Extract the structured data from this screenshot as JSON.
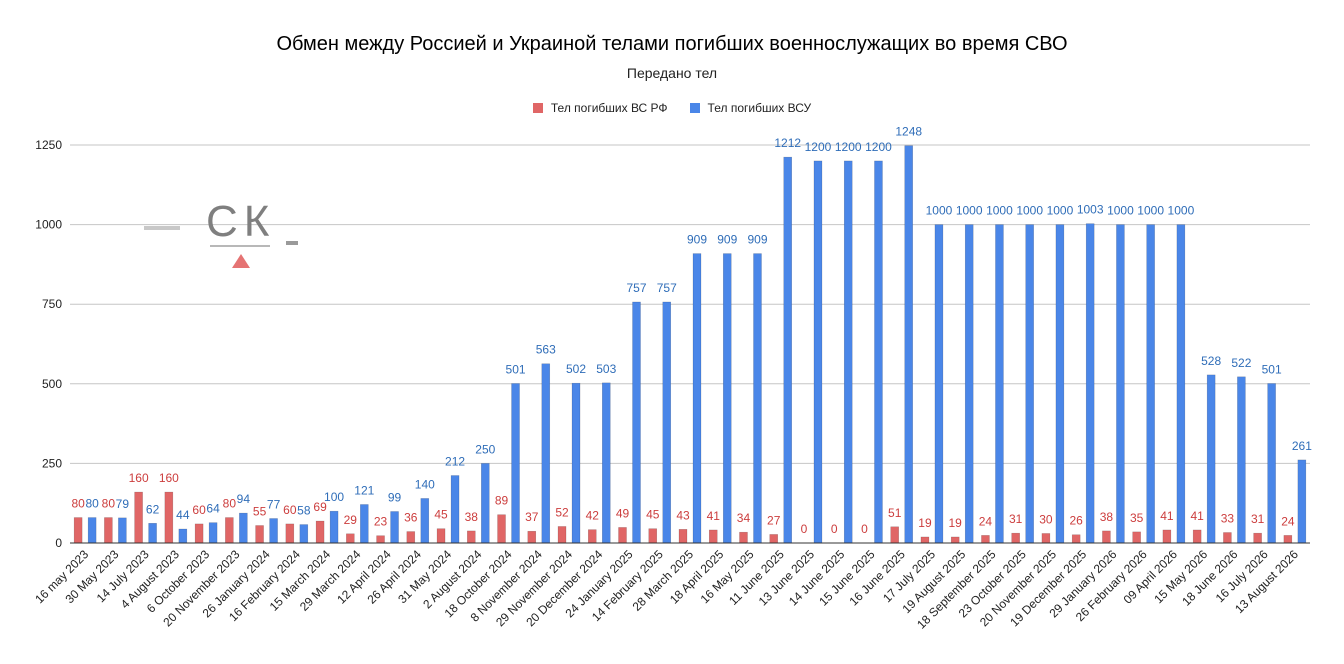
{
  "chart_data": {
    "type": "bar",
    "title": "Обмен между Россией и Украиной телами погибших военнослужащих во время СВО",
    "subtitle": "Передано тел",
    "xlabel": "",
    "ylabel": "",
    "ylim": [
      0,
      1250
    ],
    "yticks": [
      0,
      250,
      500,
      750,
      1000,
      1250
    ],
    "grid": true,
    "legend_position": "top",
    "categories": [
      "16 may 2023",
      "30 May 2023",
      "14 July 2023",
      "4 August 2023",
      "6 October 2023",
      "20 November 2023",
      "26 January 2024",
      "16 February 2024",
      "15 March 2024",
      "29 March 2024",
      "12 April 2024",
      "26 April 2024",
      "31 May 2024",
      "2 August 2024",
      "18 October 2024",
      "8 November 2024",
      "29 November 2024",
      "20 December 2024",
      "24 January 2025",
      "14 February 2025",
      "28 March 2025",
      "18 April 2025",
      "16 May 2025",
      "11 June 2025",
      "13 June 2025",
      "14 June 2025",
      "15 June 2025",
      "16 June 2025",
      "17 July 2025",
      "19 August 2025",
      "18 September 2025",
      "23 October 2025",
      "20 November 2025",
      "19 December 2025",
      "29 January 2026",
      "26 February 2026",
      "09 April 2026",
      "15 May 2026",
      "18 June 2026",
      "16 July 2026",
      "13 August 2026"
    ],
    "series": [
      {
        "name": "Тел погибших ВС  РФ",
        "color": "#e06666",
        "label_color": "#cc3d3d",
        "values": [
          80,
          80,
          160,
          160,
          60,
          80,
          55,
          60,
          69,
          29,
          23,
          36,
          45,
          38,
          89,
          37,
          52,
          42,
          49,
          45,
          43,
          41,
          34,
          27,
          0,
          0,
          0,
          51,
          19,
          19,
          24,
          31,
          30,
          26,
          38,
          35,
          41,
          41,
          33,
          31,
          24
        ],
        "labels": [
          "80",
          "80",
          "160",
          "160",
          "60",
          "80",
          "55",
          "60",
          "69",
          "29",
          "23",
          "36",
          "45",
          "38",
          "89",
          "37",
          "52",
          "42",
          "49",
          "45",
          "43",
          "41",
          "34",
          "27",
          "0",
          "0",
          "0",
          "51",
          "19",
          "19",
          "24",
          "31",
          "30",
          "26",
          "38",
          "35",
          "41",
          "41",
          "33",
          "31",
          "24"
        ]
      },
      {
        "name": "Тел погибших ВСУ",
        "color": "#4a86e8",
        "label_color": "#2f6db8",
        "values": [
          80,
          79,
          62,
          44,
          64,
          94,
          77,
          58,
          100,
          121,
          99,
          140,
          212,
          250,
          501,
          563,
          502,
          503,
          757,
          757,
          909,
          909,
          909,
          1212,
          1200,
          1200,
          1200,
          1248,
          1000,
          1000,
          1000,
          1000,
          1000,
          1003,
          1000,
          1000,
          1000,
          528,
          522,
          501,
          261
        ],
        "labels": [
          "80",
          "79",
          "62",
          "44",
          "64",
          "94",
          "77",
          "58",
          "100",
          "121",
          "99",
          "140",
          "212",
          "250",
          "501",
          "563",
          "502",
          "503",
          "757",
          "757",
          "909",
          "909",
          "909",
          "1212",
          "1200",
          "1200",
          "1200",
          "1248",
          "1000",
          "1000",
          "1000",
          "1000",
          "1000",
          "1003",
          "1000",
          "1000",
          "1000",
          "528",
          "522",
          "501",
          "261"
        ]
      }
    ]
  },
  "watermark": {
    "text": "СК"
  }
}
